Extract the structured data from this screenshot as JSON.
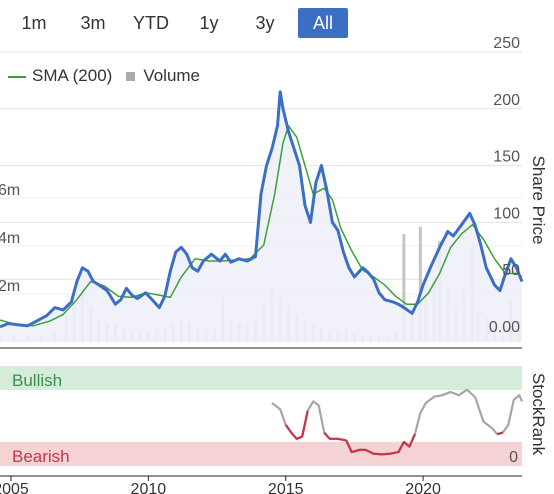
{
  "range_buttons": [
    {
      "label": "1m",
      "active": false
    },
    {
      "label": "3m",
      "active": false
    },
    {
      "label": "YTD",
      "active": false
    },
    {
      "label": "1y",
      "active": false
    },
    {
      "label": "3y",
      "active": false
    },
    {
      "label": "All",
      "active": true
    }
  ],
  "legend": {
    "sma": "SMA (200)",
    "volume": "Volume"
  },
  "colors": {
    "price": "#3a6fc4",
    "sma": "#3aa13a",
    "volume": "#c4c4c4",
    "area": "#eef0f8",
    "bullish_band": "#d5ecdb",
    "bearish_band": "#f5d2d4",
    "rank_neutral": "#a6a6a6",
    "rank_bearish": "#cc3344",
    "active_button": "#3a6fc4"
  },
  "chart_data": {
    "type": "line",
    "ylabel": "Share Price",
    "price_axis": {
      "ylim": [
        0,
        250
      ],
      "ticks": [
        "250",
        "200",
        "150",
        "100",
        "50",
        "0.00"
      ]
    },
    "volume_axis": {
      "ylim": [
        0,
        8
      ],
      "ticks": [
        "2m",
        "4m",
        "6m"
      ]
    },
    "x_ticks": [
      "2005",
      "2010",
      "2015",
      "2020"
    ],
    "xlim": [
      2004.6,
      2023.6
    ],
    "series": [
      {
        "name": "Share price",
        "points": [
          [
            2004.6,
            8
          ],
          [
            2004.9,
            11
          ],
          [
            2005.2,
            10
          ],
          [
            2005.6,
            9
          ],
          [
            2006.0,
            14
          ],
          [
            2006.3,
            18
          ],
          [
            2006.6,
            25
          ],
          [
            2006.9,
            23
          ],
          [
            2007.2,
            30
          ],
          [
            2007.4,
            48
          ],
          [
            2007.6,
            60
          ],
          [
            2007.8,
            57
          ],
          [
            2008.0,
            48
          ],
          [
            2008.2,
            45
          ],
          [
            2008.5,
            40
          ],
          [
            2008.8,
            28
          ],
          [
            2009.0,
            32
          ],
          [
            2009.2,
            42
          ],
          [
            2009.4,
            36
          ],
          [
            2009.6,
            33
          ],
          [
            2009.9,
            38
          ],
          [
            2010.1,
            33
          ],
          [
            2010.4,
            25
          ],
          [
            2010.6,
            35
          ],
          [
            2010.8,
            57
          ],
          [
            2011.0,
            74
          ],
          [
            2011.2,
            78
          ],
          [
            2011.4,
            72
          ],
          [
            2011.6,
            60
          ],
          [
            2011.8,
            57
          ],
          [
            2012.0,
            66
          ],
          [
            2012.3,
            72
          ],
          [
            2012.6,
            66
          ],
          [
            2012.8,
            72
          ],
          [
            2013.0,
            65
          ],
          [
            2013.3,
            68
          ],
          [
            2013.6,
            66
          ],
          [
            2013.9,
            70
          ],
          [
            2014.1,
            125
          ],
          [
            2014.3,
            150
          ],
          [
            2014.5,
            165
          ],
          [
            2014.7,
            185
          ],
          [
            2014.8,
            215
          ],
          [
            2014.9,
            200
          ],
          [
            2015.1,
            180
          ],
          [
            2015.3,
            165
          ],
          [
            2015.5,
            150
          ],
          [
            2015.7,
            115
          ],
          [
            2015.9,
            100
          ],
          [
            2016.1,
            135
          ],
          [
            2016.3,
            150
          ],
          [
            2016.5,
            128
          ],
          [
            2016.7,
            100
          ],
          [
            2016.9,
            93
          ],
          [
            2017.1,
            74
          ],
          [
            2017.3,
            60
          ],
          [
            2017.5,
            52
          ],
          [
            2017.8,
            60
          ],
          [
            2018.0,
            56
          ],
          [
            2018.2,
            50
          ],
          [
            2018.4,
            38
          ],
          [
            2018.6,
            32
          ],
          [
            2018.9,
            30
          ],
          [
            2019.1,
            28
          ],
          [
            2019.3,
            25
          ],
          [
            2019.6,
            20
          ],
          [
            2019.8,
            30
          ],
          [
            2020.0,
            45
          ],
          [
            2020.3,
            62
          ],
          [
            2020.6,
            78
          ],
          [
            2020.9,
            92
          ],
          [
            2021.1,
            88
          ],
          [
            2021.4,
            98
          ],
          [
            2021.7,
            108
          ],
          [
            2021.9,
            97
          ],
          [
            2022.1,
            80
          ],
          [
            2022.3,
            60
          ],
          [
            2022.6,
            45
          ],
          [
            2022.8,
            40
          ],
          [
            2023.0,
            55
          ],
          [
            2023.2,
            68
          ],
          [
            2023.4,
            60
          ],
          [
            2023.6,
            48
          ]
        ]
      },
      {
        "name": "SMA (200)",
        "points": [
          [
            2004.6,
            14
          ],
          [
            2005.2,
            10
          ],
          [
            2005.8,
            9
          ],
          [
            2006.4,
            13
          ],
          [
            2006.9,
            19
          ],
          [
            2007.4,
            32
          ],
          [
            2007.9,
            48
          ],
          [
            2008.4,
            44
          ],
          [
            2008.9,
            35
          ],
          [
            2009.4,
            34
          ],
          [
            2009.9,
            38
          ],
          [
            2010.4,
            36
          ],
          [
            2010.8,
            34
          ],
          [
            2011.2,
            52
          ],
          [
            2011.7,
            68
          ],
          [
            2012.2,
            66
          ],
          [
            2012.7,
            66
          ],
          [
            2013.2,
            67
          ],
          [
            2013.7,
            68
          ],
          [
            2014.2,
            80
          ],
          [
            2014.6,
            125
          ],
          [
            2014.9,
            170
          ],
          [
            2015.1,
            185
          ],
          [
            2015.4,
            175
          ],
          [
            2015.7,
            150
          ],
          [
            2016.0,
            125
          ],
          [
            2016.4,
            130
          ],
          [
            2016.7,
            120
          ],
          [
            2017.0,
            95
          ],
          [
            2017.4,
            75
          ],
          [
            2017.8,
            58
          ],
          [
            2018.2,
            52
          ],
          [
            2018.6,
            45
          ],
          [
            2019.0,
            35
          ],
          [
            2019.4,
            28
          ],
          [
            2019.8,
            28
          ],
          [
            2020.2,
            38
          ],
          [
            2020.6,
            55
          ],
          [
            2021.0,
            78
          ],
          [
            2021.4,
            90
          ],
          [
            2021.8,
            98
          ],
          [
            2022.2,
            85
          ],
          [
            2022.6,
            68
          ],
          [
            2023.0,
            55
          ],
          [
            2023.4,
            55
          ],
          [
            2023.6,
            52
          ]
        ]
      }
    ],
    "volume_values_m": [
      [
        2004.6,
        0.3
      ],
      [
        2005.1,
        0.2
      ],
      [
        2005.6,
        0.3
      ],
      [
        2006.1,
        0.3
      ],
      [
        2006.6,
        0.4
      ],
      [
        2007.0,
        1.2
      ],
      [
        2007.3,
        1.8
      ],
      [
        2007.6,
        2.2
      ],
      [
        2007.9,
        1.4
      ],
      [
        2008.2,
        0.9
      ],
      [
        2008.5,
        0.8
      ],
      [
        2008.8,
        0.7
      ],
      [
        2009.1,
        0.6
      ],
      [
        2009.4,
        0.5
      ],
      [
        2009.7,
        0.5
      ],
      [
        2010.0,
        0.4
      ],
      [
        2010.3,
        0.5
      ],
      [
        2010.6,
        0.6
      ],
      [
        2010.9,
        0.7
      ],
      [
        2011.2,
        0.9
      ],
      [
        2011.5,
        0.8
      ],
      [
        2011.8,
        0.6
      ],
      [
        2012.1,
        0.5
      ],
      [
        2012.4,
        0.6
      ],
      [
        2012.7,
        1.9
      ],
      [
        2013.0,
        0.9
      ],
      [
        2013.3,
        0.8
      ],
      [
        2013.6,
        0.7
      ],
      [
        2013.9,
        0.9
      ],
      [
        2014.2,
        1.6
      ],
      [
        2014.5,
        2.2
      ],
      [
        2014.8,
        1.8
      ],
      [
        2015.1,
        1.5
      ],
      [
        2015.4,
        1.1
      ],
      [
        2015.7,
        0.9
      ],
      [
        2016.0,
        0.8
      ],
      [
        2016.3,
        0.6
      ],
      [
        2016.6,
        0.5
      ],
      [
        2016.9,
        0.5
      ],
      [
        2017.2,
        0.5
      ],
      [
        2017.5,
        0.4
      ],
      [
        2017.8,
        0.3
      ],
      [
        2018.1,
        0.3
      ],
      [
        2018.4,
        0.3
      ],
      [
        2018.7,
        0.3
      ],
      [
        2019.0,
        0.4
      ],
      [
        2019.3,
        4.5
      ],
      [
        2019.6,
        1.2
      ],
      [
        2019.9,
        4.8
      ],
      [
        2020.1,
        2.0
      ],
      [
        2020.4,
        2.6
      ],
      [
        2020.6,
        4.2
      ],
      [
        2020.9,
        2.3
      ],
      [
        2021.2,
        1.5
      ],
      [
        2021.5,
        2.2
      ],
      [
        2021.8,
        4.0
      ],
      [
        2022.0,
        1.3
      ],
      [
        2022.3,
        1.0
      ],
      [
        2022.6,
        0.8
      ],
      [
        2022.9,
        0.7
      ],
      [
        2023.2,
        1.8
      ],
      [
        2023.5,
        0.9
      ]
    ]
  },
  "stockrank": {
    "label": "StockRank",
    "band_top": "Bullish",
    "band_bottom": "Bearish",
    "axis_value": "0",
    "ylim": [
      0,
      100
    ],
    "points": [
      [
        2014.5,
        68
      ],
      [
        2014.8,
        60
      ],
      [
        2015.0,
        40
      ],
      [
        2015.2,
        30
      ],
      [
        2015.4,
        22
      ],
      [
        2015.6,
        25
      ],
      [
        2015.8,
        58
      ],
      [
        2016.0,
        70
      ],
      [
        2016.2,
        65
      ],
      [
        2016.4,
        30
      ],
      [
        2016.6,
        22
      ],
      [
        2016.9,
        22
      ],
      [
        2017.2,
        20
      ],
      [
        2017.4,
        5
      ],
      [
        2017.7,
        8
      ],
      [
        2017.9,
        8
      ],
      [
        2018.2,
        3
      ],
      [
        2018.5,
        2
      ],
      [
        2018.8,
        3
      ],
      [
        2019.1,
        5
      ],
      [
        2019.3,
        18
      ],
      [
        2019.5,
        12
      ],
      [
        2019.7,
        28
      ],
      [
        2019.9,
        55
      ],
      [
        2020.1,
        68
      ],
      [
        2020.4,
        76
      ],
      [
        2020.7,
        78
      ],
      [
        2021.0,
        82
      ],
      [
        2021.3,
        78
      ],
      [
        2021.6,
        85
      ],
      [
        2021.9,
        75
      ],
      [
        2022.2,
        44
      ],
      [
        2022.5,
        36
      ],
      [
        2022.7,
        28
      ],
      [
        2022.9,
        30
      ],
      [
        2023.1,
        40
      ],
      [
        2023.3,
        72
      ],
      [
        2023.5,
        78
      ],
      [
        2023.6,
        70
      ]
    ],
    "bearish_segments": [
      [
        2015.0,
        2015.8
      ],
      [
        2016.3,
        2017.2
      ],
      [
        2017.2,
        2019.8
      ],
      [
        2022.6,
        2022.95
      ]
    ]
  }
}
